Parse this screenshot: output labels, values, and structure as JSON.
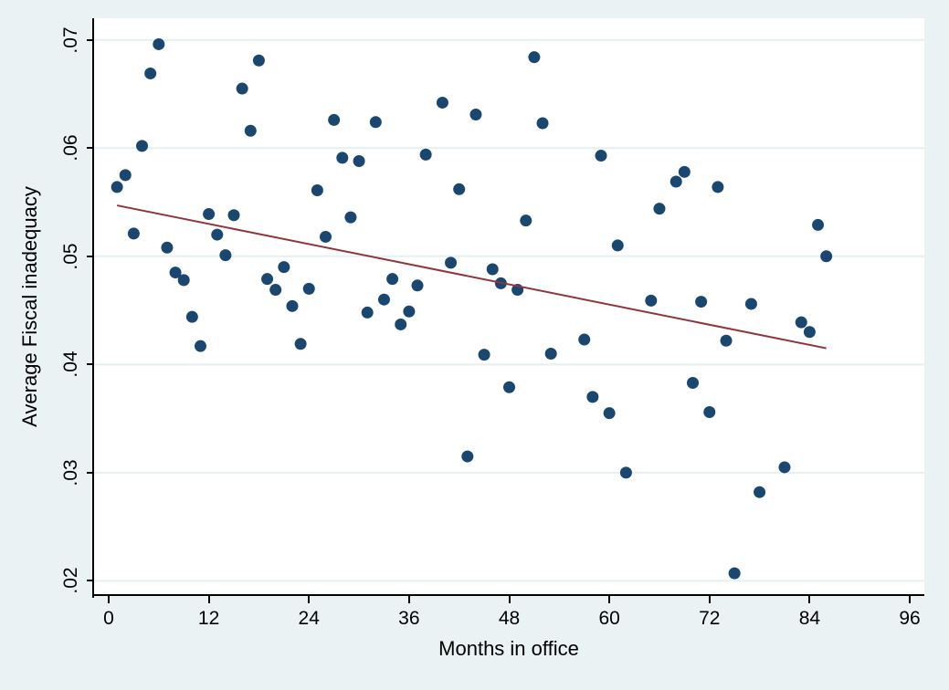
{
  "figure": {
    "background_color": "#eaf2f3",
    "plot_background_color": "#ffffff",
    "grid_color": "#e6eff1",
    "axis_color": "#000000"
  },
  "chart_data": {
    "type": "scatter",
    "title": "",
    "xlabel": "Months in office",
    "ylabel": "Average Fiscal inadequacy",
    "xlim": [
      -1.75,
      97.75
    ],
    "ylim": [
      0.0186,
      0.072
    ],
    "grid": true,
    "legend": "none",
    "x_ticks": [
      {
        "value": 0,
        "label": "0"
      },
      {
        "value": 12,
        "label": "12"
      },
      {
        "value": 24,
        "label": "24"
      },
      {
        "value": 36,
        "label": "36"
      },
      {
        "value": 48,
        "label": "48"
      },
      {
        "value": 60,
        "label": "60"
      },
      {
        "value": 72,
        "label": "72"
      },
      {
        "value": 84,
        "label": "84"
      },
      {
        "value": 96,
        "label": "96"
      }
    ],
    "y_ticks": [
      {
        "value": 0.02,
        "label": ".02"
      },
      {
        "value": 0.03,
        "label": ".03"
      },
      {
        "value": 0.04,
        "label": ".04"
      },
      {
        "value": 0.05,
        "label": ".05"
      },
      {
        "value": 0.06,
        "label": ".06"
      },
      {
        "value": 0.07,
        "label": ".07"
      }
    ],
    "series": [
      {
        "name": "average-fiscal-inadequacy-points",
        "type": "scatter",
        "color": "#1a476f",
        "marker_radius": 6.5,
        "points": [
          [
            1,
            0.0564
          ],
          [
            2,
            0.0575
          ],
          [
            3,
            0.0521
          ],
          [
            4,
            0.0602
          ],
          [
            5,
            0.0669
          ],
          [
            6,
            0.0696
          ],
          [
            7,
            0.0508
          ],
          [
            8,
            0.0485
          ],
          [
            9,
            0.0478
          ],
          [
            10,
            0.0444
          ],
          [
            11,
            0.0417
          ],
          [
            12,
            0.0539
          ],
          [
            13,
            0.052
          ],
          [
            14,
            0.0501
          ],
          [
            15,
            0.0538
          ],
          [
            16,
            0.0655
          ],
          [
            17,
            0.0616
          ],
          [
            18,
            0.0681
          ],
          [
            19,
            0.0479
          ],
          [
            20,
            0.0469
          ],
          [
            21,
            0.049
          ],
          [
            22,
            0.0454
          ],
          [
            23,
            0.0419
          ],
          [
            24,
            0.047
          ],
          [
            25,
            0.0561
          ],
          [
            26,
            0.0518
          ],
          [
            27,
            0.0626
          ],
          [
            28,
            0.0591
          ],
          [
            29,
            0.0536
          ],
          [
            30,
            0.0588
          ],
          [
            31,
            0.0448
          ],
          [
            32,
            0.0624
          ],
          [
            33,
            0.046
          ],
          [
            34,
            0.0479
          ],
          [
            35,
            0.0437
          ],
          [
            36,
            0.0449
          ],
          [
            37,
            0.0473
          ],
          [
            38,
            0.0594
          ],
          [
            40,
            0.0642
          ],
          [
            41,
            0.0494
          ],
          [
            42,
            0.0562
          ],
          [
            43,
            0.0315
          ],
          [
            44,
            0.0631
          ],
          [
            45,
            0.0409
          ],
          [
            46,
            0.0488
          ],
          [
            47,
            0.0475
          ],
          [
            48,
            0.0379
          ],
          [
            49,
            0.0469
          ],
          [
            50,
            0.0533
          ],
          [
            51,
            0.0684
          ],
          [
            52,
            0.0623
          ],
          [
            53,
            0.041
          ],
          [
            57,
            0.0423
          ],
          [
            58,
            0.037
          ],
          [
            59,
            0.0593
          ],
          [
            60,
            0.0355
          ],
          [
            61,
            0.051
          ],
          [
            62,
            0.03
          ],
          [
            65,
            0.0459
          ],
          [
            66,
            0.0544
          ],
          [
            68,
            0.0569
          ],
          [
            69,
            0.0578
          ],
          [
            70,
            0.0383
          ],
          [
            71,
            0.0458
          ],
          [
            72,
            0.0356
          ],
          [
            73,
            0.0564
          ],
          [
            74,
            0.0422
          ],
          [
            75,
            0.0207
          ],
          [
            77,
            0.0456
          ],
          [
            78,
            0.0282
          ],
          [
            81,
            0.0305
          ],
          [
            83,
            0.0439
          ],
          [
            84,
            0.043
          ],
          [
            85,
            0.0529
          ],
          [
            86,
            0.05
          ]
        ]
      },
      {
        "name": "fitted-line",
        "type": "line",
        "color": "#90353b",
        "stroke_width": 2,
        "points": [
          [
            1,
            0.0547
          ],
          [
            86,
            0.0415
          ]
        ]
      }
    ]
  }
}
